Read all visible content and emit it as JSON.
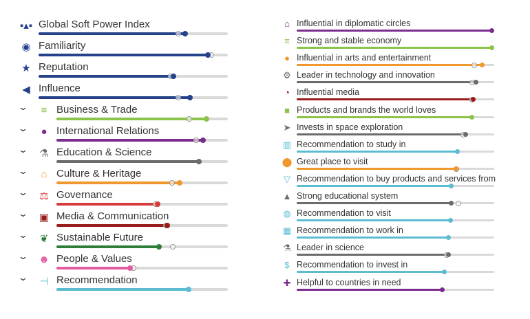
{
  "colors": {
    "navy": "#24428a",
    "green": "#8cc34b",
    "purple": "#7b2d8e",
    "gray": "#6b6b6b",
    "orange": "#f0982e",
    "red": "#d63a3a",
    "darkred": "#9a1d1d",
    "darkgreen": "#2f7d3a",
    "pink": "#e45c9f",
    "teal": "#5bbcd2"
  },
  "left": [
    {
      "label": "Global Soft Power Index",
      "icon": "ranking-icon",
      "glyph": "▪▴▪",
      "color": "navy",
      "value": 0.775,
      "prev": 0.738,
      "sub": false
    },
    {
      "label": "Familiarity",
      "icon": "eye-icon",
      "glyph": "◉",
      "color": "navy",
      "value": 0.895,
      "prev": 0.913,
      "sub": false
    },
    {
      "label": "Reputation",
      "icon": "star-icon",
      "glyph": "★",
      "color": "navy",
      "value": 0.713,
      "prev": 0.698,
      "sub": false
    },
    {
      "label": "Influence",
      "icon": "megaphone-icon",
      "glyph": "◀",
      "color": "navy",
      "value": 0.8,
      "prev": 0.738,
      "sub": false
    },
    {
      "label": "Business & Trade",
      "icon": "coins-icon",
      "glyph": "≡",
      "color": "green",
      "value": 0.875,
      "prev": 0.775,
      "sub": true
    },
    {
      "label": "International Relations",
      "icon": "globe-icon",
      "glyph": "●",
      "color": "purple",
      "value": 0.855,
      "prev": 0.815,
      "sub": true
    },
    {
      "label": "Education & Science",
      "icon": "microscope-icon",
      "glyph": "⚗",
      "color": "gray",
      "value": 0.83,
      "prev": null,
      "sub": true
    },
    {
      "label": "Culture & Heritage",
      "icon": "museum-icon",
      "glyph": "⌂",
      "color": "orange",
      "value": 0.72,
      "prev": 0.675,
      "sub": true
    },
    {
      "label": "Governance",
      "icon": "scales-icon",
      "glyph": "⚖",
      "color": "red",
      "value": 0.59,
      "prev": 0.58,
      "sub": true
    },
    {
      "label": "Media & Communication",
      "icon": "tv-icon",
      "glyph": "▣",
      "color": "darkred",
      "value": 0.647,
      "prev": 0.64,
      "sub": true
    },
    {
      "label": "Sustainable Future",
      "icon": "leaf-icon",
      "glyph": "❦",
      "color": "darkgreen",
      "value": 0.6,
      "prev": 0.68,
      "sub": true
    },
    {
      "label": "People & Values",
      "icon": "people-icon",
      "glyph": "☻",
      "color": "pink",
      "value": 0.43,
      "prev": 0.45,
      "sub": true
    },
    {
      "label": "Recommendation",
      "icon": "signpost-icon",
      "glyph": "⊣",
      "color": "teal",
      "value": 0.77,
      "prev": null,
      "sub": true
    }
  ],
  "right": [
    {
      "label": "Influential in diplomatic circles",
      "icon": "building-icon",
      "glyph": "⌂",
      "color": "purple",
      "value": 0.99,
      "prev": null
    },
    {
      "label": "Strong and stable economy",
      "icon": "coins-icon",
      "glyph": "≡",
      "color": "green",
      "value": 0.99,
      "prev": null
    },
    {
      "label": "Influential in arts and entertainment",
      "icon": "palette-icon",
      "glyph": "●",
      "color": "orange",
      "value": 0.94,
      "prev": 0.9
    },
    {
      "label": "Leader in technology and innovation",
      "icon": "gears-icon",
      "glyph": "⚙",
      "color": "gray",
      "value": 0.91,
      "prev": 0.89
    },
    {
      "label": "Influential media",
      "icon": "satellite-icon",
      "glyph": "◔",
      "color": "darkred",
      "value": 0.895,
      "prev": 0.888
    },
    {
      "label": "Products and brands the world loves",
      "icon": "shopping-bag-icon",
      "glyph": "■",
      "color": "green",
      "value": 0.89,
      "prev": null
    },
    {
      "label": "Invests in space exploration",
      "icon": "rocket-icon",
      "glyph": "➤",
      "color": "gray",
      "value": 0.857,
      "prev": 0.843
    },
    {
      "label": "Recommendation to study in",
      "icon": "reader-icon",
      "glyph": "▥",
      "color": "teal",
      "value": 0.815,
      "prev": null
    },
    {
      "label": "Great place to visit",
      "icon": "map-pin-icon",
      "glyph": "⬤",
      "color": "orange",
      "value": 0.81,
      "prev": 0.81
    },
    {
      "label": "Recommendation to buy products and services from",
      "icon": "basket-icon",
      "glyph": "▽",
      "color": "teal",
      "value": 0.785,
      "prev": null
    },
    {
      "label": "Strong educational system",
      "icon": "graduation-cap-icon",
      "glyph": "▲",
      "color": "gray",
      "value": 0.785,
      "prev": 0.82
    },
    {
      "label": "Recommendation to visit",
      "icon": "compass-icon",
      "glyph": "◍",
      "color": "teal",
      "value": 0.78,
      "prev": null
    },
    {
      "label": "Recommendation to work in",
      "icon": "office-icon",
      "glyph": "▦",
      "color": "teal",
      "value": 0.77,
      "prev": null
    },
    {
      "label": "Leader in science",
      "icon": "microscope-icon",
      "glyph": "⚗",
      "color": "gray",
      "value": 0.77,
      "prev": 0.76
    },
    {
      "label": "Recommendation to invest in",
      "icon": "invest-hand-icon",
      "glyph": "$",
      "color": "teal",
      "value": 0.75,
      "prev": null
    },
    {
      "label": "Helpful to countries in need",
      "icon": "aid-kit-icon",
      "glyph": "✚",
      "color": "purple",
      "value": 0.74,
      "prev": null
    }
  ]
}
